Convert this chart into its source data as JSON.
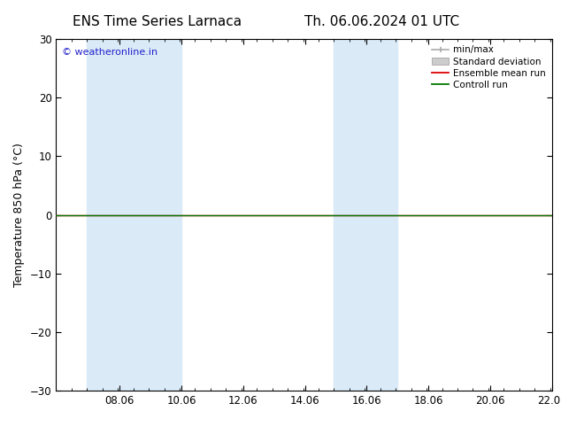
{
  "title_left": "ENS Time Series Larnaca",
  "title_right": "Th. 06.06.2024 01 UTC",
  "ylabel": "Temperature 850 hPa (°C)",
  "watermark": "© weatheronline.in",
  "watermark_color": "#2222cc",
  "xlim_start": 6.0,
  "xlim_end": 22.08,
  "ylim_min": -30,
  "ylim_max": 30,
  "yticks": [
    -30,
    -20,
    -10,
    0,
    10,
    20,
    30
  ],
  "xtick_labels": [
    "08.06",
    "10.06",
    "12.06",
    "14.06",
    "16.06",
    "18.06",
    "20.06",
    "22.06"
  ],
  "xtick_positions": [
    8.06,
    10.06,
    12.06,
    14.06,
    16.06,
    18.06,
    20.06,
    22.06
  ],
  "shaded_bands": [
    {
      "x_start": 7.0,
      "x_end": 10.06
    },
    {
      "x_start": 15.0,
      "x_end": 17.06
    }
  ],
  "shaded_color": "#daeaf7",
  "control_run_color": "#007700",
  "ensemble_mean_color": "#dd0000",
  "minmax_color": "#aaaaaa",
  "stddev_color": "#cccccc",
  "legend_labels": [
    "min/max",
    "Standard deviation",
    "Ensemble mean run",
    "Controll run"
  ],
  "bg_color": "#ffffff",
  "spine_color": "#000000",
  "title_fontsize": 11,
  "axis_label_fontsize": 9,
  "tick_fontsize": 8.5,
  "watermark_fontsize": 8
}
